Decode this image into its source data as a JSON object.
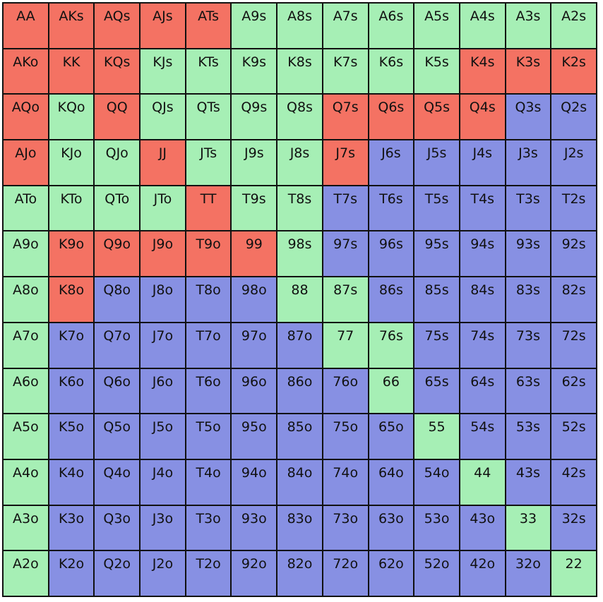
{
  "colors": {
    "r": "#f47263",
    "g": "#a6efb5",
    "b": "#8790e3"
  },
  "rows": [
    [
      [
        "AA",
        "r"
      ],
      [
        "AKs",
        "r"
      ],
      [
        "AQs",
        "r"
      ],
      [
        "AJs",
        "r"
      ],
      [
        "ATs",
        "r"
      ],
      [
        "A9s",
        "g"
      ],
      [
        "A8s",
        "g"
      ],
      [
        "A7s",
        "g"
      ],
      [
        "A6s",
        "g"
      ],
      [
        "A5s",
        "g"
      ],
      [
        "A4s",
        "g"
      ],
      [
        "A3s",
        "g"
      ],
      [
        "A2s",
        "g"
      ]
    ],
    [
      [
        "AKo",
        "r"
      ],
      [
        "KK",
        "r"
      ],
      [
        "KQs",
        "r"
      ],
      [
        "KJs",
        "g"
      ],
      [
        "KTs",
        "g"
      ],
      [
        "K9s",
        "g"
      ],
      [
        "K8s",
        "g"
      ],
      [
        "K7s",
        "g"
      ],
      [
        "K6s",
        "g"
      ],
      [
        "K5s",
        "g"
      ],
      [
        "K4s",
        "r"
      ],
      [
        "K3s",
        "r"
      ],
      [
        "K2s",
        "r"
      ]
    ],
    [
      [
        "AQo",
        "r"
      ],
      [
        "KQo",
        "g"
      ],
      [
        "QQ",
        "r"
      ],
      [
        "QJs",
        "g"
      ],
      [
        "QTs",
        "g"
      ],
      [
        "Q9s",
        "g"
      ],
      [
        "Q8s",
        "g"
      ],
      [
        "Q7s",
        "r"
      ],
      [
        "Q6s",
        "r"
      ],
      [
        "Q5s",
        "r"
      ],
      [
        "Q4s",
        "r"
      ],
      [
        "Q3s",
        "b"
      ],
      [
        "Q2s",
        "b"
      ]
    ],
    [
      [
        "AJo",
        "r"
      ],
      [
        "KJo",
        "g"
      ],
      [
        "QJo",
        "g"
      ],
      [
        "JJ",
        "r"
      ],
      [
        "JTs",
        "g"
      ],
      [
        "J9s",
        "g"
      ],
      [
        "J8s",
        "g"
      ],
      [
        "J7s",
        "r"
      ],
      [
        "J6s",
        "b"
      ],
      [
        "J5s",
        "b"
      ],
      [
        "J4s",
        "b"
      ],
      [
        "J3s",
        "b"
      ],
      [
        "J2s",
        "b"
      ]
    ],
    [
      [
        "ATo",
        "g"
      ],
      [
        "KTo",
        "g"
      ],
      [
        "QTo",
        "g"
      ],
      [
        "JTo",
        "g"
      ],
      [
        "TT",
        "r"
      ],
      [
        "T9s",
        "g"
      ],
      [
        "T8s",
        "g"
      ],
      [
        "T7s",
        "b"
      ],
      [
        "T6s",
        "b"
      ],
      [
        "T5s",
        "b"
      ],
      [
        "T4s",
        "b"
      ],
      [
        "T3s",
        "b"
      ],
      [
        "T2s",
        "b"
      ]
    ],
    [
      [
        "A9o",
        "g"
      ],
      [
        "K9o",
        "r"
      ],
      [
        "Q9o",
        "r"
      ],
      [
        "J9o",
        "r"
      ],
      [
        "T9o",
        "r"
      ],
      [
        "99",
        "r"
      ],
      [
        "98s",
        "g"
      ],
      [
        "97s",
        "b"
      ],
      [
        "96s",
        "b"
      ],
      [
        "95s",
        "b"
      ],
      [
        "94s",
        "b"
      ],
      [
        "93s",
        "b"
      ],
      [
        "92s",
        "b"
      ]
    ],
    [
      [
        "A8o",
        "g"
      ],
      [
        "K8o",
        "r"
      ],
      [
        "Q8o",
        "b"
      ],
      [
        "J8o",
        "b"
      ],
      [
        "T8o",
        "b"
      ],
      [
        "98o",
        "b"
      ],
      [
        "88",
        "g"
      ],
      [
        "87s",
        "g"
      ],
      [
        "86s",
        "b"
      ],
      [
        "85s",
        "b"
      ],
      [
        "84s",
        "b"
      ],
      [
        "83s",
        "b"
      ],
      [
        "82s",
        "b"
      ]
    ],
    [
      [
        "A7o",
        "g"
      ],
      [
        "K7o",
        "b"
      ],
      [
        "Q7o",
        "b"
      ],
      [
        "J7o",
        "b"
      ],
      [
        "T7o",
        "b"
      ],
      [
        "97o",
        "b"
      ],
      [
        "87o",
        "b"
      ],
      [
        "77",
        "g"
      ],
      [
        "76s",
        "g"
      ],
      [
        "75s",
        "b"
      ],
      [
        "74s",
        "b"
      ],
      [
        "73s",
        "b"
      ],
      [
        "72s",
        "b"
      ]
    ],
    [
      [
        "A6o",
        "g"
      ],
      [
        "K6o",
        "b"
      ],
      [
        "Q6o",
        "b"
      ],
      [
        "J6o",
        "b"
      ],
      [
        "T6o",
        "b"
      ],
      [
        "96o",
        "b"
      ],
      [
        "86o",
        "b"
      ],
      [
        "76o",
        "b"
      ],
      [
        "66",
        "g"
      ],
      [
        "65s",
        "b"
      ],
      [
        "64s",
        "b"
      ],
      [
        "63s",
        "b"
      ],
      [
        "62s",
        "b"
      ]
    ],
    [
      [
        "A5o",
        "g"
      ],
      [
        "K5o",
        "b"
      ],
      [
        "Q5o",
        "b"
      ],
      [
        "J5o",
        "b"
      ],
      [
        "T5o",
        "b"
      ],
      [
        "95o",
        "b"
      ],
      [
        "85o",
        "b"
      ],
      [
        "75o",
        "b"
      ],
      [
        "65o",
        "b"
      ],
      [
        "55",
        "g"
      ],
      [
        "54s",
        "b"
      ],
      [
        "53s",
        "b"
      ],
      [
        "52s",
        "b"
      ]
    ],
    [
      [
        "A4o",
        "g"
      ],
      [
        "K4o",
        "b"
      ],
      [
        "Q4o",
        "b"
      ],
      [
        "J4o",
        "b"
      ],
      [
        "T4o",
        "b"
      ],
      [
        "94o",
        "b"
      ],
      [
        "84o",
        "b"
      ],
      [
        "74o",
        "b"
      ],
      [
        "64o",
        "b"
      ],
      [
        "54o",
        "b"
      ],
      [
        "44",
        "g"
      ],
      [
        "43s",
        "b"
      ],
      [
        "42s",
        "b"
      ]
    ],
    [
      [
        "A3o",
        "g"
      ],
      [
        "K3o",
        "b"
      ],
      [
        "Q3o",
        "b"
      ],
      [
        "J3o",
        "b"
      ],
      [
        "T3o",
        "b"
      ],
      [
        "93o",
        "b"
      ],
      [
        "83o",
        "b"
      ],
      [
        "73o",
        "b"
      ],
      [
        "63o",
        "b"
      ],
      [
        "53o",
        "b"
      ],
      [
        "43o",
        "b"
      ],
      [
        "33",
        "g"
      ],
      [
        "32s",
        "b"
      ]
    ],
    [
      [
        "A2o",
        "g"
      ],
      [
        "K2o",
        "b"
      ],
      [
        "Q2o",
        "b"
      ],
      [
        "J2o",
        "b"
      ],
      [
        "T2o",
        "b"
      ],
      [
        "92o",
        "b"
      ],
      [
        "82o",
        "b"
      ],
      [
        "72o",
        "b"
      ],
      [
        "62o",
        "b"
      ],
      [
        "52o",
        "b"
      ],
      [
        "42o",
        "b"
      ],
      [
        "32o",
        "b"
      ],
      [
        "22",
        "g"
      ]
    ]
  ]
}
